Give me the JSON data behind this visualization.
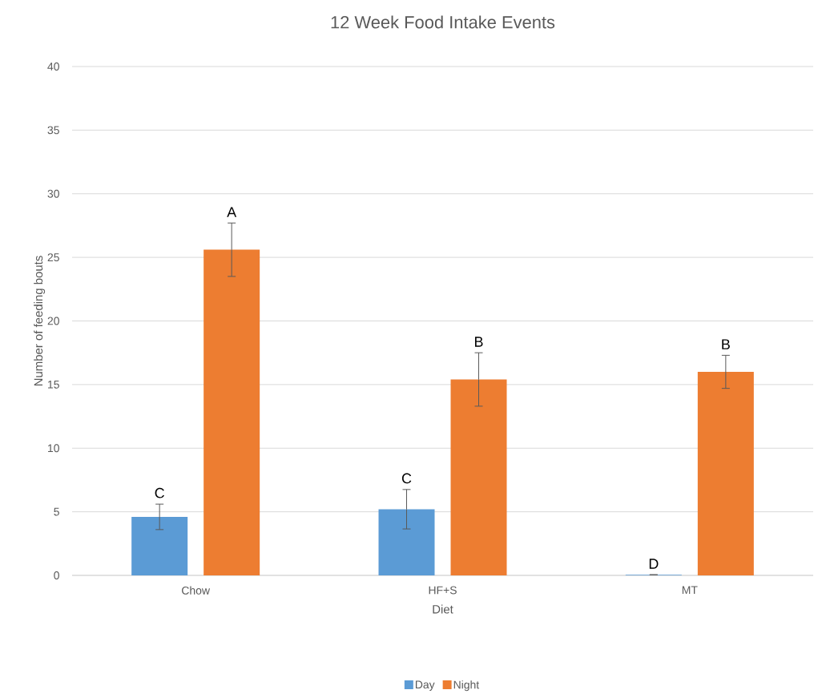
{
  "chart_data": {
    "type": "bar",
    "title": "12 Week Food Intake Events",
    "xlabel": "Diet",
    "ylabel": "Number of feeding bouts",
    "categories": [
      "Chow",
      "HF+S",
      "MT"
    ],
    "series": [
      {
        "name": "Day",
        "color": "#5b9bd5",
        "values": [
          4.6,
          5.2,
          0.05
        ],
        "errors": [
          1.0,
          1.55,
          null
        ],
        "value_labels": [
          "C",
          "C",
          "D"
        ]
      },
      {
        "name": "Night",
        "color": "#ed7d31",
        "values": [
          25.6,
          15.4,
          16.0
        ],
        "errors": [
          2.1,
          2.1,
          1.3
        ],
        "value_labels": [
          "A",
          "B",
          "B"
        ]
      }
    ],
    "ylim": [
      0,
      40
    ],
    "yticks": [
      0,
      5,
      10,
      15,
      20,
      25,
      30,
      35,
      40
    ],
    "grid": "y",
    "legend": "bottom"
  }
}
